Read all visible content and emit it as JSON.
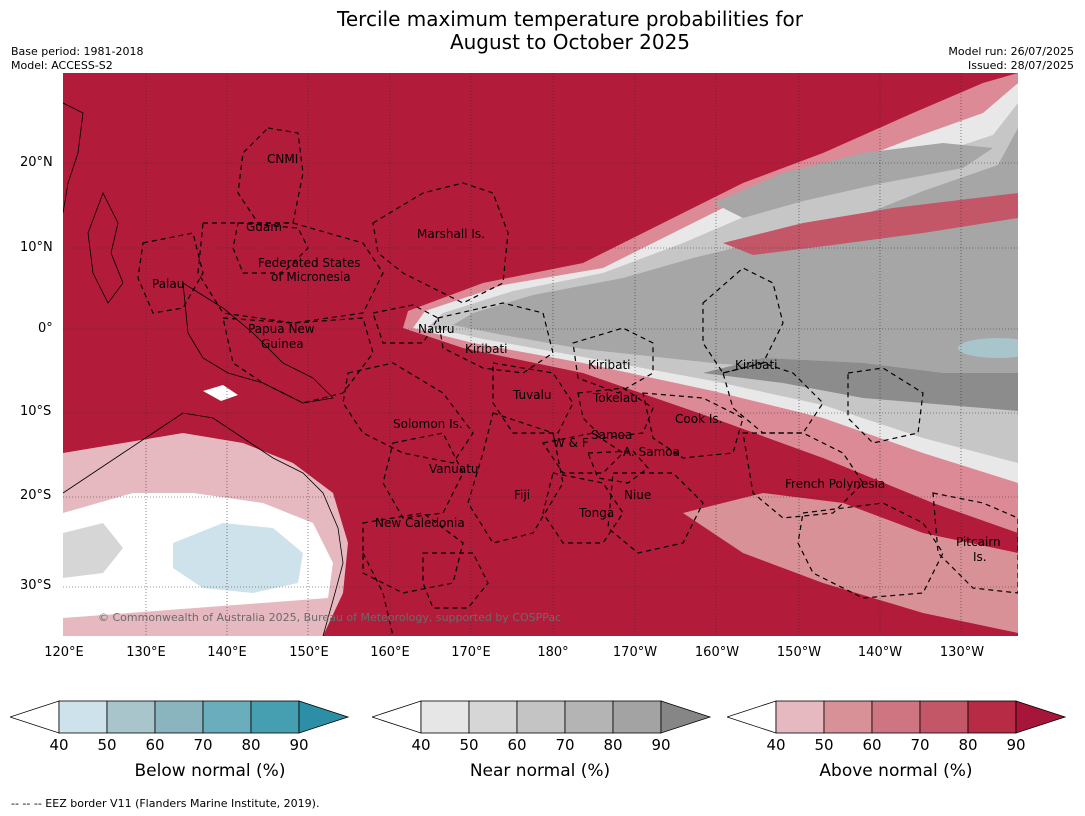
{
  "title_line1": "Tercile maximum temperature probabilities for",
  "title_line2": "August to October 2025",
  "base_period": "Base period: 1981-2018",
  "model": "Model: ACCESS-S2",
  "model_run": "Model run: 26/07/2025",
  "issued": "Issued: 28/07/2025",
  "copyright": "© Commonwealth of Australia 2025, Bureau of Meteorology, supported by COSPPac",
  "footnote": "--  --  -- EEZ border V11 (Flanders Marine Institute, 2019).",
  "lat_ticks": [
    "20°N",
    "10°N",
    "0°",
    "10°S",
    "20°S",
    "30°S"
  ],
  "lon_ticks": [
    "120°E",
    "130°E",
    "140°E",
    "150°E",
    "160°E",
    "170°E",
    "180°",
    "170°W",
    "160°W",
    "150°W",
    "140°W",
    "130°W"
  ],
  "region_labels": {
    "cnmi": "CNMI",
    "guam": "Guam",
    "marshall": "Marshall Is.",
    "fsm1": "Federated States",
    "fsm2": "of Micronesia",
    "palau": "Palau",
    "png1": "Papua New",
    "png2": "Guinea",
    "nauru": "Nauru",
    "kiribati_w": "Kiribati",
    "kiribati_c": "Kiribati",
    "kiribati_e": "Kiribati",
    "tuvalu": "Tuvalu",
    "tokelau": "Tokelau",
    "cook": "Cook Is.",
    "solomon": "Solomon Is.",
    "wf": "W & F",
    "samoa": "Samoa",
    "asamoa": "A. Samoa",
    "vanuatu": "Vanuatu",
    "fiji": "Fiji",
    "niue": "Niue",
    "tonga": "Tonga",
    "newcal": "New Caledonia",
    "frpoly": "French Polynesia",
    "pitcairn1": "Pitcairn",
    "pitcairn2": "Is."
  },
  "colorbars": [
    {
      "label": "Below normal (%)",
      "ticks": [
        "40",
        "50",
        "60",
        "70",
        "80",
        "90"
      ],
      "colors": [
        "#cde2ea",
        "#a7c5cb",
        "#8ab5bf",
        "#6aaebd",
        "#469fb1",
        "#2c8fa6"
      ]
    },
    {
      "label": "Near normal (%)",
      "ticks": [
        "40",
        "50",
        "60",
        "70",
        "80",
        "90"
      ],
      "colors": [
        "#e6e6e6",
        "#d6d6d6",
        "#c4c4c4",
        "#b4b4b4",
        "#a3a3a3",
        "#868686"
      ]
    },
    {
      "label": "Above normal (%)",
      "ticks": [
        "40",
        "50",
        "60",
        "70",
        "80",
        "90"
      ],
      "colors": [
        "#e6b9c0",
        "#d99198",
        "#cf7481",
        "#c35767",
        "#b72c44",
        "#a7163a"
      ]
    }
  ],
  "colors": {
    "above90": "#b31b3a",
    "below_low": "#cde2ea",
    "near_mid": "#a6a6a6",
    "near_dark": "#8a8a8a",
    "near_light": "#c9c9c9"
  }
}
